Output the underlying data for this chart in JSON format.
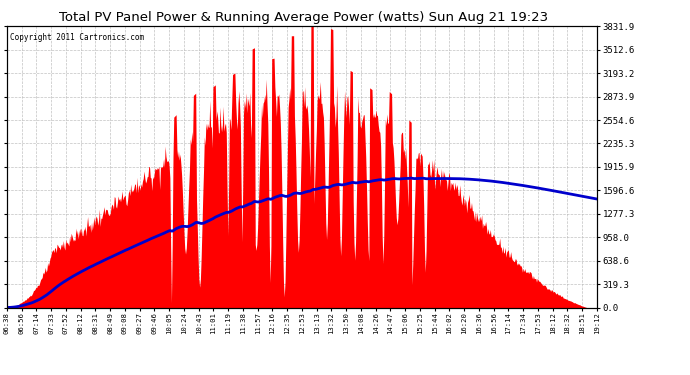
{
  "title": "Total PV Panel Power & Running Average Power (watts) Sun Aug 21 19:23",
  "copyright": "Copyright 2011 Cartronics.com",
  "background_color": "#ffffff",
  "plot_bg_color": "#ffffff",
  "grid_color": "#bbbbbb",
  "yticks": [
    0.0,
    319.3,
    638.6,
    958.0,
    1277.3,
    1596.6,
    1915.9,
    2235.3,
    2554.6,
    2873.9,
    3193.2,
    3512.6,
    3831.9
  ],
  "ymax": 3831.9,
  "ymin": 0.0,
  "bar_color": "#ff0000",
  "avg_color": "#0000cc",
  "avg_linewidth": 2.0,
  "title_fontsize": 10,
  "xtick_labels": [
    "06:38",
    "06:56",
    "07:14",
    "07:33",
    "07:52",
    "08:12",
    "08:31",
    "08:49",
    "09:08",
    "09:27",
    "09:46",
    "10:05",
    "10:24",
    "10:43",
    "11:01",
    "11:19",
    "11:38",
    "11:57",
    "12:16",
    "12:35",
    "12:53",
    "13:13",
    "13:32",
    "13:50",
    "14:08",
    "14:26",
    "14:47",
    "15:06",
    "15:25",
    "15:44",
    "16:02",
    "16:20",
    "16:36",
    "16:56",
    "17:14",
    "17:34",
    "17:53",
    "18:12",
    "18:32",
    "18:51",
    "19:12"
  ]
}
